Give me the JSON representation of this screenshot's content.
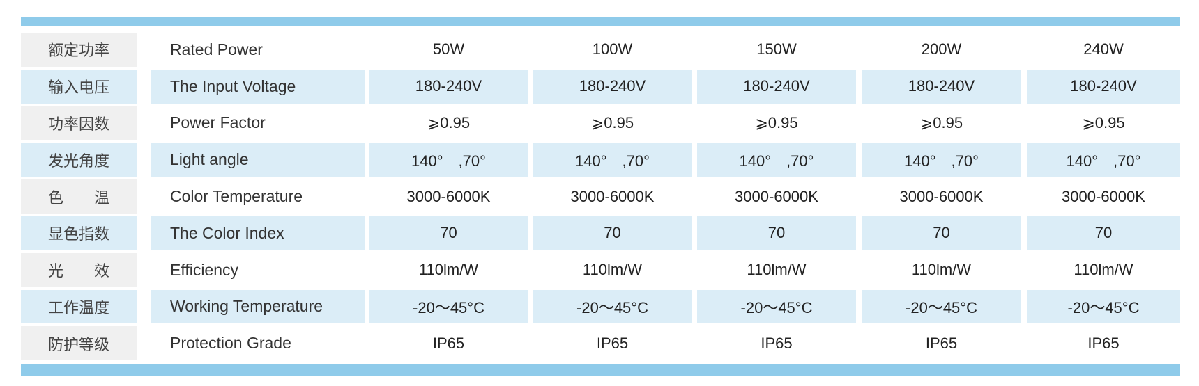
{
  "table": {
    "rows": [
      {
        "zh": "额定功率",
        "en": "Rated Power",
        "cells": [
          "50W",
          "100W",
          "150W",
          "200W",
          "240W"
        ]
      },
      {
        "zh": "输入电压",
        "en": "The Input Voltage",
        "cells": [
          "180-240V",
          "180-240V",
          "180-240V",
          "180-240V",
          "180-240V"
        ]
      },
      {
        "zh": "功率因数",
        "en": "Power Factor",
        "cells": [
          "⩾0.95",
          "⩾0.95",
          "⩾0.95",
          "⩾0.95",
          "⩾0.95"
        ]
      },
      {
        "zh": "发光角度",
        "en": "Light angle",
        "cells": [
          "140°　,70°",
          "140°　,70°",
          "140°　,70°",
          "140°　,70°",
          "140°　,70°"
        ]
      },
      {
        "zh": "色　　温",
        "en": "Color Temperature",
        "cells": [
          "3000-6000K",
          "3000-6000K",
          "3000-6000K",
          "3000-6000K",
          "3000-6000K"
        ]
      },
      {
        "zh": "显色指数",
        "en": "The Color Index",
        "cells": [
          "70",
          "70",
          "70",
          "70",
          "70"
        ]
      },
      {
        "zh": "光　　效",
        "en": "Efficiency",
        "cells": [
          "110lm/W",
          "110lm/W",
          "110lm/W",
          "110lm/W",
          "110lm/W"
        ]
      },
      {
        "zh": "工作温度",
        "en": "Working Temperature",
        "cells": [
          "-20～45°C",
          "-20～45°C",
          "-20～45°C",
          "-20～45°C",
          "-20～45°C"
        ]
      },
      {
        "zh": "防护等级",
        "en": "Protection Grade",
        "cells": [
          "IP65",
          "IP65",
          "IP65",
          "IP65",
          "IP65"
        ]
      }
    ]
  }
}
